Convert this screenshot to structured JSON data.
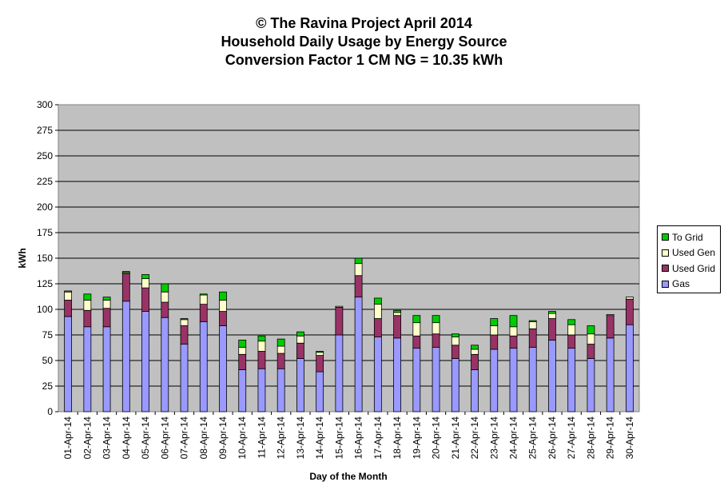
{
  "chart_data": {
    "type": "bar",
    "stacked": true,
    "title": [
      "© The Ravina Project April 2014",
      "Household Daily Usage by Energy Source",
      "Conversion Factor 1 CM NG = 10.35 kWh"
    ],
    "xlabel": "Day of the Month",
    "ylabel": "kWh",
    "ylim": [
      0,
      300
    ],
    "yticks": [
      0,
      25,
      50,
      75,
      100,
      125,
      150,
      175,
      200,
      225,
      250,
      275,
      300
    ],
    "grid": true,
    "legend_position": "right",
    "categories": [
      "01-Apr-14",
      "02-Apr-14",
      "03-Apr-14",
      "04-Apr-14",
      "05-Apr-14",
      "06-Apr-14",
      "07-Apr-14",
      "08-Apr-14",
      "09-Apr-14",
      "10-Apr-14",
      "11-Apr-14",
      "12-Apr-14",
      "13-Apr-14",
      "14-Apr-14",
      "15-Apr-14",
      "16-Apr-14",
      "17-Apr-14",
      "18-Apr-14",
      "19-Apr-14",
      "20-Apr-14",
      "21-Apr-14",
      "22-Apr-14",
      "23-Apr-14",
      "24-Apr-14",
      "25-Apr-14",
      "26-Apr-14",
      "27-Apr-14",
      "28-Apr-14",
      "29-Apr-14",
      "30-Apr-14"
    ],
    "series": [
      {
        "name": "Gas",
        "color": "#9999ff",
        "values": [
          93,
          83,
          83,
          108,
          98,
          92,
          66,
          88,
          84,
          41,
          42,
          42,
          52,
          39,
          75,
          112,
          73,
          72,
          62,
          63,
          52,
          41,
          61,
          62,
          63,
          70,
          62,
          52,
          72,
          85
        ]
      },
      {
        "name": "Used Grid",
        "color": "#993366",
        "values": [
          16,
          16,
          18,
          27,
          23,
          15,
          18,
          17,
          14,
          15,
          17,
          15,
          15,
          16,
          27,
          21,
          18,
          22,
          12,
          13,
          13,
          15,
          14,
          12,
          18,
          21,
          13,
          14,
          22,
          25
        ]
      },
      {
        "name": "Used Gen",
        "color": "#ffffcc",
        "values": [
          8,
          10,
          8,
          1,
          9,
          10,
          6,
          9,
          11,
          7,
          10,
          7,
          7,
          3,
          1,
          12,
          14,
          3,
          13,
          11,
          8,
          5,
          9,
          9,
          7,
          5,
          10,
          10,
          1,
          2
        ]
      },
      {
        "name": "To Grid",
        "color": "#00cc00",
        "values": [
          1,
          6,
          3,
          1,
          4,
          8,
          1,
          1,
          8,
          7,
          5,
          7,
          4,
          1,
          0,
          5,
          6,
          2,
          7,
          7,
          3,
          4,
          7,
          11,
          1,
          2,
          5,
          8,
          0,
          0
        ]
      }
    ]
  }
}
